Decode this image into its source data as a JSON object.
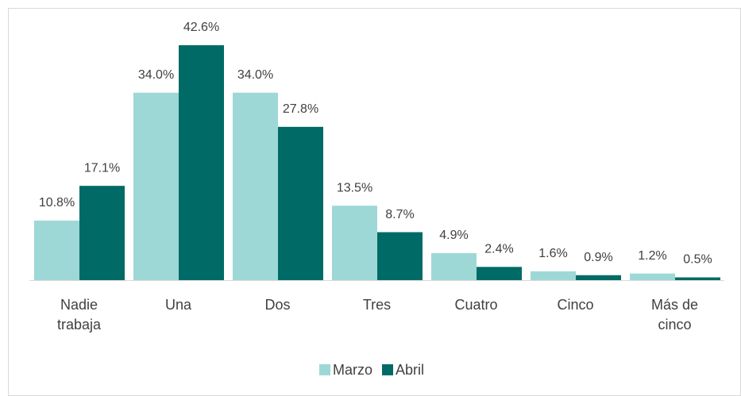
{
  "chart_data": {
    "type": "bar",
    "categories": [
      "Nadie trabaja",
      "Una",
      "Dos",
      "Tres",
      "Cuatro",
      "Cinco",
      "Más de cinco"
    ],
    "series": [
      {
        "name": "Marzo",
        "color": "#9dd8d6",
        "values": [
          10.8,
          34.0,
          34.0,
          13.5,
          4.9,
          1.6,
          1.2
        ],
        "value_labels": [
          "10.8%",
          "34.0%",
          "34.0%",
          "13.5%",
          "4.9%",
          "1.6%",
          "1.2%"
        ]
      },
      {
        "name": "Abril",
        "color": "#006b66",
        "values": [
          17.1,
          42.6,
          27.8,
          8.7,
          2.4,
          0.9,
          0.5
        ],
        "value_labels": [
          "17.1%",
          "42.6%",
          "27.8%",
          "8.7%",
          "2.4%",
          "0.9%",
          "0.5%"
        ]
      }
    ],
    "legend": "bottom"
  }
}
